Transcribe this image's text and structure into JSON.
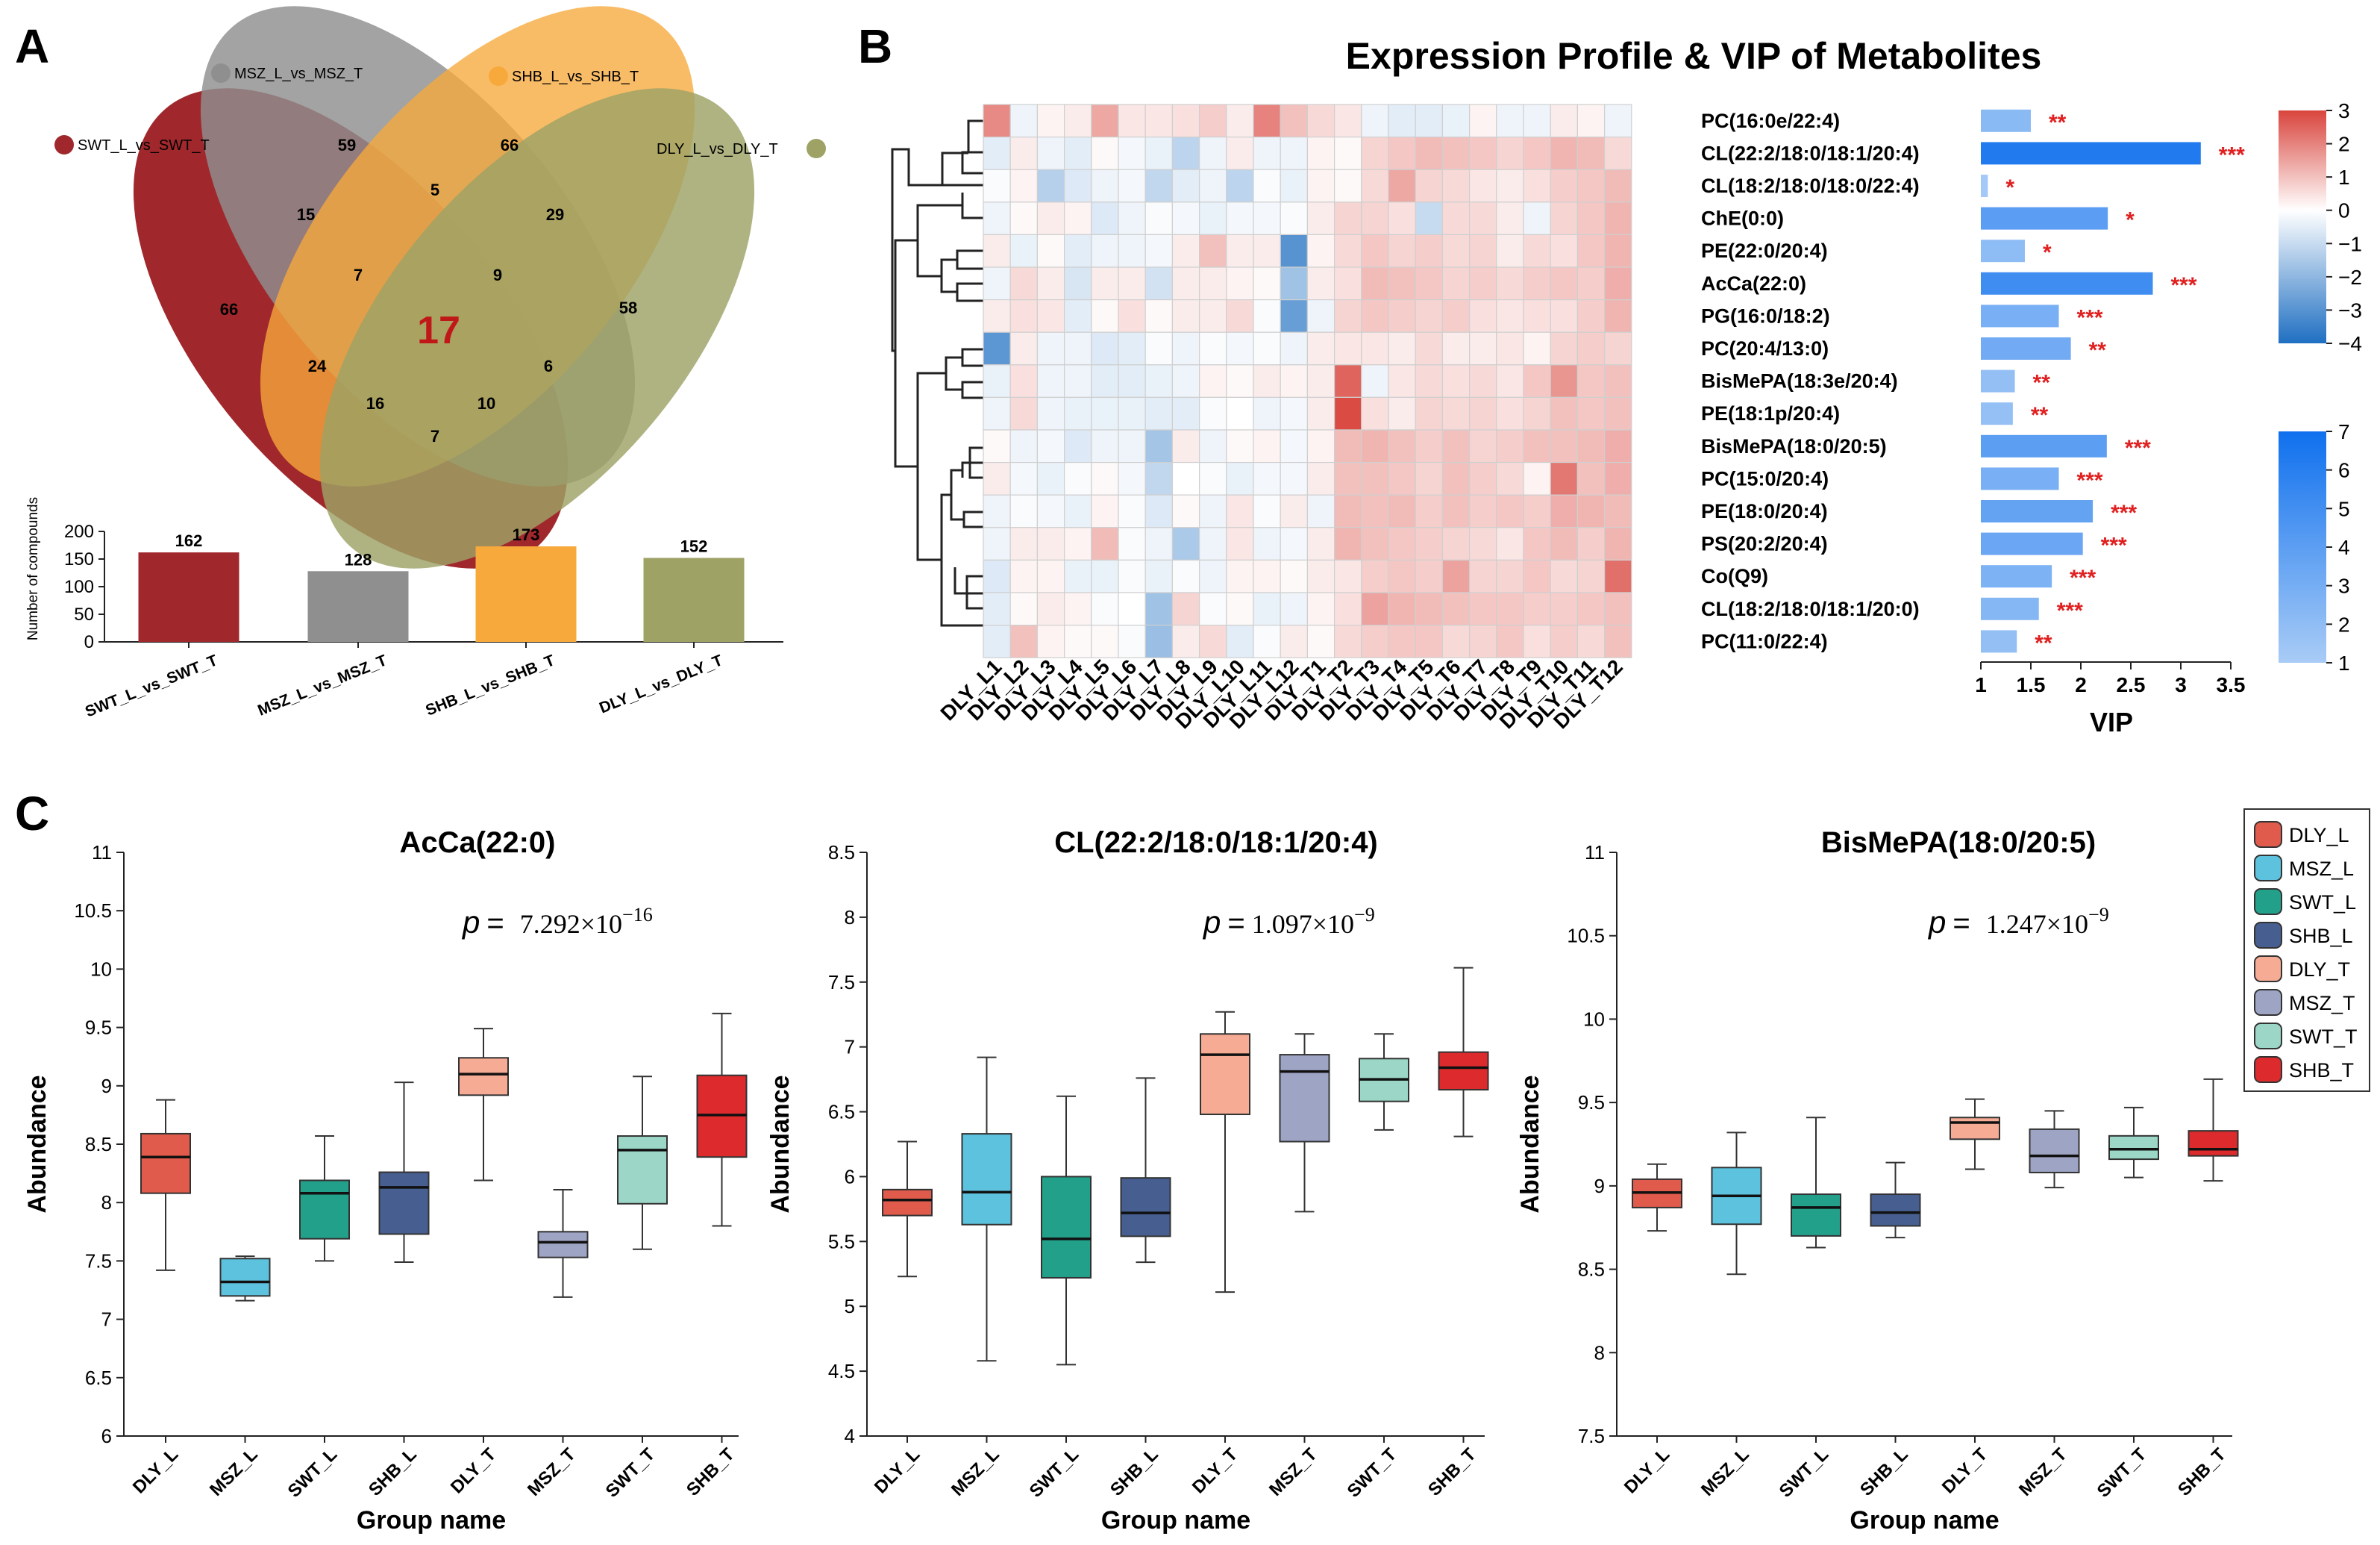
{
  "panel_labels": {
    "a": "A",
    "b": "B",
    "c": "C"
  },
  "chart_data": [
    {
      "type": "venn",
      "panel": "A",
      "sets": [
        {
          "name": "SWT_L_vs_SWT_T",
          "color": "#a0282c"
        },
        {
          "name": "MSZ_L_vs_MSZ_T",
          "color": "#8f8f8f"
        },
        {
          "name": "SHB_L_vs_SHB_T",
          "color": "#f7a93b"
        },
        {
          "name": "DLY_L_vs_DLY_T",
          "color": "#9ea265"
        }
      ],
      "regions": {
        "SWT": "66",
        "MSZ": "59",
        "SHB": "66",
        "DLY": "58",
        "SWT_MSZ": "15",
        "MSZ_SHB": "5",
        "SHB_DLY": "29",
        "SWT_SHB": "24",
        "SWT_DLY": "7",
        "MSZ_DLY": "6",
        "SWT_MSZ_SHB": "7",
        "MSZ_SHB_DLY": "9",
        "SWT_SHB_DLY": "16",
        "SWT_MSZ_DLY": "10",
        "ALL": "17"
      }
    },
    {
      "type": "bar",
      "panel": "A",
      "categories": [
        "SWT_L_vs_SWT_T",
        "MSZ_L_vs_MSZ_T",
        "SHB_L_vs_SHB_T",
        "DLY_L_vs_DLY_T"
      ],
      "values": [
        162,
        128,
        173,
        152
      ],
      "colors": [
        "#a0282c",
        "#8f8f8f",
        "#f7a93b",
        "#9ea265"
      ],
      "ylabel": "Number of compounds",
      "ylim": [
        0,
        200
      ],
      "yticks": [
        0,
        50,
        100,
        150,
        200
      ]
    },
    {
      "type": "heatmap",
      "panel": "B",
      "title": "Expression Profile & VIP of Metabolites",
      "columns": [
        "DLY_L1",
        "DLY_L2",
        "DLY_L3",
        "DLY_L4",
        "DLY_L5",
        "DLY_L6",
        "DLY_L7",
        "DLY_L8",
        "DLY_L9",
        "DLY_L10",
        "DLY_L11",
        "DLY_L12",
        "DLY_T1",
        "DLY_T2",
        "DLY_T3",
        "DLY_T4",
        "DLY_T5",
        "DLY_T6",
        "DLY_T7",
        "DLY_T8",
        "DLY_T9",
        "DLY_T10",
        "DLY_T11",
        "DLY_T12"
      ],
      "rows": [
        "PC(16:0e/22:4)",
        "CL(22:2/18:0/18:1/20:4)",
        "CL(18:2/18:0/18:0/22:4)",
        "ChE(0:0)",
        "PE(22:0/20:4)",
        "AcCa(22:0)",
        "PG(16:0/18:2)",
        "PC(20:4/13:0)",
        "BisMePA(18:3e/20:4)",
        "PE(18:1p/20:4)",
        "BisMePA(18:0/20:5)",
        "PC(15:0/20:4)",
        "PE(18:0/20:4)",
        "PS(20:2/20:4)",
        "Co(Q9)",
        "CL(18:2/18:0/18:1/20:0)",
        "PC(11:0/22:4)"
      ],
      "values": [
        [
          1.9,
          -0.3,
          0.2,
          0.3,
          1.4,
          0.4,
          0.4,
          0.5,
          0.8,
          0.3,
          2.0,
          1.0,
          0.6,
          0.4,
          -0.3,
          -0.5,
          -0.5,
          -0.4,
          0.2,
          -0.3,
          -0.3,
          0.3,
          0.2,
          -0.3
        ],
        [
          -0.5,
          0.3,
          -0.3,
          -0.5,
          0.1,
          -0.2,
          -0.4,
          -1.2,
          -0.3,
          0.3,
          -0.3,
          -0.3,
          0.2,
          0.1,
          0.7,
          0.9,
          1.1,
          1.0,
          0.9,
          0.7,
          0.9,
          1.2,
          1.1,
          0.6
        ],
        [
          -0.1,
          0.2,
          -1.3,
          -0.6,
          -0.3,
          -0.2,
          -1.1,
          -0.5,
          -0.3,
          -1.2,
          -0.1,
          -0.4,
          0.2,
          0.1,
          0.6,
          1.4,
          0.7,
          0.6,
          0.4,
          0.3,
          0.5,
          0.8,
          0.9,
          1.1
        ],
        [
          -0.3,
          0.1,
          0.3,
          0.2,
          -0.6,
          -0.3,
          -0.1,
          -0.2,
          -0.4,
          -0.2,
          -0.2,
          -0.1,
          0.3,
          0.7,
          0.7,
          0.5,
          -1.0,
          0.6,
          0.6,
          0.3,
          -0.3,
          0.7,
          0.9,
          1.2
        ],
        [
          0.3,
          -0.4,
          0.1,
          -0.5,
          -0.3,
          -0.3,
          -0.2,
          0.3,
          1.0,
          0.3,
          0.3,
          -3.0,
          0.2,
          0.6,
          0.9,
          0.7,
          0.8,
          0.6,
          0.7,
          0.3,
          0.6,
          0.5,
          0.9,
          1.2
        ],
        [
          -0.3,
          0.6,
          0.3,
          -0.7,
          0.3,
          0.3,
          -0.8,
          0.3,
          0.3,
          0.2,
          0.1,
          -1.7,
          0.3,
          0.5,
          1.1,
          1.0,
          0.9,
          0.7,
          0.8,
          0.6,
          0.8,
          0.9,
          0.8,
          1.3
        ],
        [
          0.3,
          0.5,
          0.4,
          -0.5,
          0.1,
          0.5,
          0.1,
          0.3,
          0.3,
          0.6,
          -0.1,
          -2.7,
          -0.3,
          0.7,
          0.9,
          0.8,
          0.7,
          0.8,
          0.5,
          0.4,
          0.5,
          0.5,
          0.8,
          1.2
        ],
        [
          -2.9,
          0.3,
          -0.3,
          -0.3,
          -0.6,
          -0.5,
          -0.1,
          -0.3,
          -0.1,
          -0.2,
          -0.1,
          -0.3,
          0.3,
          0.4,
          0.4,
          0.3,
          0.6,
          0.3,
          0.3,
          0.4,
          0.2,
          0.7,
          0.8,
          0.7
        ],
        [
          -0.4,
          0.5,
          -0.3,
          -0.3,
          -0.5,
          -0.5,
          -0.4,
          -0.3,
          0.2,
          0.1,
          0.3,
          0.2,
          0.3,
          2.5,
          -0.3,
          0.4,
          0.6,
          0.5,
          0.6,
          0.4,
          0.9,
          1.7,
          0.9,
          1.0
        ],
        [
          -0.3,
          0.6,
          -0.3,
          -0.4,
          -0.4,
          -0.4,
          -0.5,
          -0.5,
          -0.1,
          0.0,
          -0.3,
          -0.2,
          0.3,
          2.9,
          0.5,
          0.3,
          0.7,
          0.6,
          0.7,
          0.5,
          0.7,
          1.0,
          0.9,
          1.0
        ],
        [
          0.1,
          -0.3,
          -0.2,
          -0.6,
          -0.3,
          -0.3,
          -1.6,
          0.3,
          -0.3,
          0.1,
          0.2,
          -0.2,
          0.2,
          1.1,
          1.2,
          1.0,
          0.8,
          1.0,
          0.7,
          0.8,
          1.0,
          1.0,
          1.1,
          1.3
        ],
        [
          0.3,
          -0.2,
          -0.4,
          -0.1,
          0.1,
          -0.2,
          -1.1,
          0.0,
          -0.1,
          -0.4,
          -0.2,
          -0.2,
          0.3,
          1.0,
          1.0,
          0.9,
          0.7,
          1.0,
          0.8,
          0.6,
          0.2,
          2.2,
          1.0,
          1.3
        ],
        [
          -0.3,
          -0.1,
          -0.2,
          -0.4,
          0.2,
          -0.1,
          -0.6,
          0.1,
          -0.3,
          0.4,
          -0.1,
          0.3,
          -0.3,
          1.1,
          1.0,
          1.1,
          0.8,
          1.0,
          0.8,
          0.9,
          0.8,
          1.3,
          1.2,
          1.1
        ],
        [
          -0.3,
          0.3,
          0.3,
          0.2,
          1.1,
          -0.1,
          -0.3,
          -1.5,
          -0.3,
          0.4,
          -0.3,
          -0.2,
          0.3,
          1.2,
          1.0,
          0.9,
          0.8,
          0.7,
          0.6,
          0.4,
          0.9,
          1.1,
          0.8,
          1.2
        ],
        [
          -0.6,
          0.2,
          0.2,
          -0.4,
          -0.4,
          -0.1,
          -0.4,
          -0.1,
          -0.3,
          0.2,
          0.2,
          0.1,
          0.3,
          0.4,
          0.8,
          0.9,
          0.8,
          1.5,
          0.7,
          0.7,
          0.9,
          0.6,
          0.7,
          2.3
        ],
        [
          -0.5,
          0.1,
          0.3,
          0.2,
          -0.1,
          0.0,
          -1.7,
          0.7,
          -0.1,
          0.1,
          -0.4,
          -0.3,
          0.2,
          0.5,
          1.5,
          1.2,
          1.1,
          1.0,
          0.9,
          0.9,
          0.8,
          0.8,
          0.9,
          1.0
        ],
        [
          -0.5,
          1.0,
          0.2,
          0.1,
          0.1,
          -0.1,
          -1.8,
          0.3,
          0.6,
          -0.5,
          -0.1,
          0.3,
          0.1,
          0.6,
          0.8,
          0.9,
          0.9,
          0.6,
          0.7,
          0.9,
          0.5,
          0.8,
          0.6,
          1.0
        ]
      ],
      "color_scale": {
        "min": -4,
        "max": 3,
        "ticks": [
          3,
          2,
          1,
          0,
          -1,
          -2,
          -3,
          -4
        ],
        "low": "#1f6fc2",
        "mid": "#ffffff",
        "high": "#d9453d"
      }
    },
    {
      "type": "bar",
      "orientation": "horizontal",
      "panel": "B",
      "xlabel": "VIP",
      "xlim": [
        1,
        3.5
      ],
      "xticks": [
        "1",
        "1.5",
        "2",
        "2.5",
        "3",
        "3.5"
      ],
      "values": [
        1.5,
        3.2,
        1.07,
        2.27,
        1.44,
        2.72,
        1.78,
        1.9,
        1.34,
        1.32,
        2.26,
        1.78,
        2.12,
        2.02,
        1.71,
        1.58,
        1.36
      ],
      "significance": [
        "**",
        "***",
        "*",
        "*",
        "*",
        "***",
        "***",
        "**",
        "**",
        "**",
        "***",
        "***",
        "***",
        "***",
        "***",
        "***",
        "**"
      ],
      "color_scale": {
        "min": 1,
        "max": 7,
        "ticks": [
          7,
          6,
          5,
          4,
          3,
          2,
          1
        ],
        "low": "#a9ccf6",
        "high": "#0f70ee"
      }
    },
    {
      "type": "box",
      "panel": "C",
      "title": "AcCa(22:0)",
      "p_label": "p",
      "p_eq": "=",
      "p_value": "7.292×10",
      "p_exp": "−16",
      "categories": [
        "DLY_L",
        "MSZ_L",
        "SWT_L",
        "SHB_L",
        "DLY_T",
        "MSZ_T",
        "SWT_T",
        "SHB_T"
      ],
      "boxes": [
        {
          "min": 7.42,
          "q1": 8.08,
          "median": 8.39,
          "q3": 8.59,
          "max": 8.88
        },
        {
          "min": 7.16,
          "q1": 7.2,
          "median": 7.32,
          "q3": 7.52,
          "max": 7.54
        },
        {
          "min": 7.5,
          "q1": 7.69,
          "median": 8.08,
          "q3": 8.19,
          "max": 8.57
        },
        {
          "min": 7.49,
          "q1": 7.73,
          "median": 8.13,
          "q3": 8.26,
          "max": 9.03
        },
        {
          "min": 8.19,
          "q1": 8.92,
          "median": 9.1,
          "q3": 9.24,
          "max": 9.49
        },
        {
          "min": 7.19,
          "q1": 7.53,
          "median": 7.66,
          "q3": 7.75,
          "max": 8.11
        },
        {
          "min": 7.6,
          "q1": 7.99,
          "median": 8.45,
          "q3": 8.57,
          "max": 9.08
        },
        {
          "min": 7.8,
          "q1": 8.39,
          "median": 8.75,
          "q3": 9.09,
          "max": 9.62
        }
      ],
      "xlabel": "Group name",
      "ylabel": "Abundance",
      "ylim": [
        6,
        11
      ],
      "yticks": [
        "6",
        "6.5",
        "7",
        "7.5",
        "8",
        "8.5",
        "9",
        "9.5",
        "10",
        "10.5",
        "11"
      ]
    },
    {
      "type": "box",
      "panel": "C",
      "title": "CL(22:2/18:0/18:1/20:4)",
      "p_label": "p",
      "p_eq": "=",
      "p_value": " 1.097×10",
      "p_exp": "−9",
      "categories": [
        "DLY_L",
        "MSZ_L",
        "SWT_L",
        "SHB_L",
        "DLY_T",
        "MSZ_T",
        "SWT_T",
        "SHB_T"
      ],
      "boxes": [
        {
          "min": 5.23,
          "q1": 5.7,
          "median": 5.82,
          "q3": 5.9,
          "max": 6.27
        },
        {
          "min": 4.58,
          "q1": 5.63,
          "median": 5.88,
          "q3": 6.33,
          "max": 6.92
        },
        {
          "min": 4.55,
          "q1": 5.22,
          "median": 5.52,
          "q3": 6.0,
          "max": 6.62
        },
        {
          "min": 5.34,
          "q1": 5.54,
          "median": 5.72,
          "q3": 5.99,
          "max": 6.76
        },
        {
          "min": 5.11,
          "q1": 6.48,
          "median": 6.94,
          "q3": 7.1,
          "max": 7.27
        },
        {
          "min": 5.73,
          "q1": 6.27,
          "median": 6.81,
          "q3": 6.94,
          "max": 7.1
        },
        {
          "min": 6.36,
          "q1": 6.58,
          "median": 6.75,
          "q3": 6.91,
          "max": 7.1
        },
        {
          "min": 6.31,
          "q1": 6.67,
          "median": 6.84,
          "q3": 6.96,
          "max": 7.61
        }
      ],
      "xlabel": "Group name",
      "ylabel": "Abundance",
      "ylim": [
        4,
        8.5
      ],
      "yticks": [
        "4",
        "4.5",
        "5",
        "5.5",
        "6",
        "6.5",
        "7",
        "7.5",
        "8",
        "8.5"
      ]
    },
    {
      "type": "box",
      "panel": "C",
      "title": "BisMePA(18:0/20:5)",
      "p_label": "p",
      "p_eq": "=",
      "p_value": "1.247×10",
      "p_exp": "−9",
      "categories": [
        "DLY_L",
        "MSZ_L",
        "SWT_L",
        "SHB_L",
        "DLY_T",
        "MSZ_T",
        "SWT_T",
        "SHB_T"
      ],
      "boxes": [
        {
          "min": 8.73,
          "q1": 8.87,
          "median": 8.96,
          "q3": 9.04,
          "max": 9.13
        },
        {
          "min": 8.47,
          "q1": 8.77,
          "median": 8.94,
          "q3": 9.11,
          "max": 9.32
        },
        {
          "min": 8.63,
          "q1": 8.7,
          "median": 8.87,
          "q3": 8.95,
          "max": 9.41
        },
        {
          "min": 8.69,
          "q1": 8.76,
          "median": 8.84,
          "q3": 8.95,
          "max": 9.14
        },
        {
          "min": 9.1,
          "q1": 9.28,
          "median": 9.38,
          "q3": 9.41,
          "max": 9.52
        },
        {
          "min": 8.99,
          "q1": 9.08,
          "median": 9.18,
          "q3": 9.34,
          "max": 9.45
        },
        {
          "min": 9.05,
          "q1": 9.16,
          "median": 9.22,
          "q3": 9.3,
          "max": 9.47
        },
        {
          "min": 9.03,
          "q1": 9.18,
          "median": 9.22,
          "q3": 9.33,
          "max": 9.64
        }
      ],
      "xlabel": "Group name",
      "ylabel": "Abundance",
      "ylim": [
        7.5,
        11
      ],
      "yticks": [
        "7.5",
        "8",
        "8.5",
        "9",
        "9.5",
        "10",
        "10.5",
        "11"
      ]
    }
  ],
  "legend": {
    "items": [
      {
        "label": "DLY_L",
        "color": "#e05b4b"
      },
      {
        "label": "MSZ_L",
        "color": "#5cc2de"
      },
      {
        "label": "SWT_L",
        "color": "#23a08a"
      },
      {
        "label": "SHB_L",
        "color": "#465f90"
      },
      {
        "label": "DLY_T",
        "color": "#f5ab94"
      },
      {
        "label": "MSZ_T",
        "color": "#9ea4c4"
      },
      {
        "label": "SWT_T",
        "color": "#9bd6c6"
      },
      {
        "label": "SHB_T",
        "color": "#dc2a2d"
      }
    ]
  }
}
